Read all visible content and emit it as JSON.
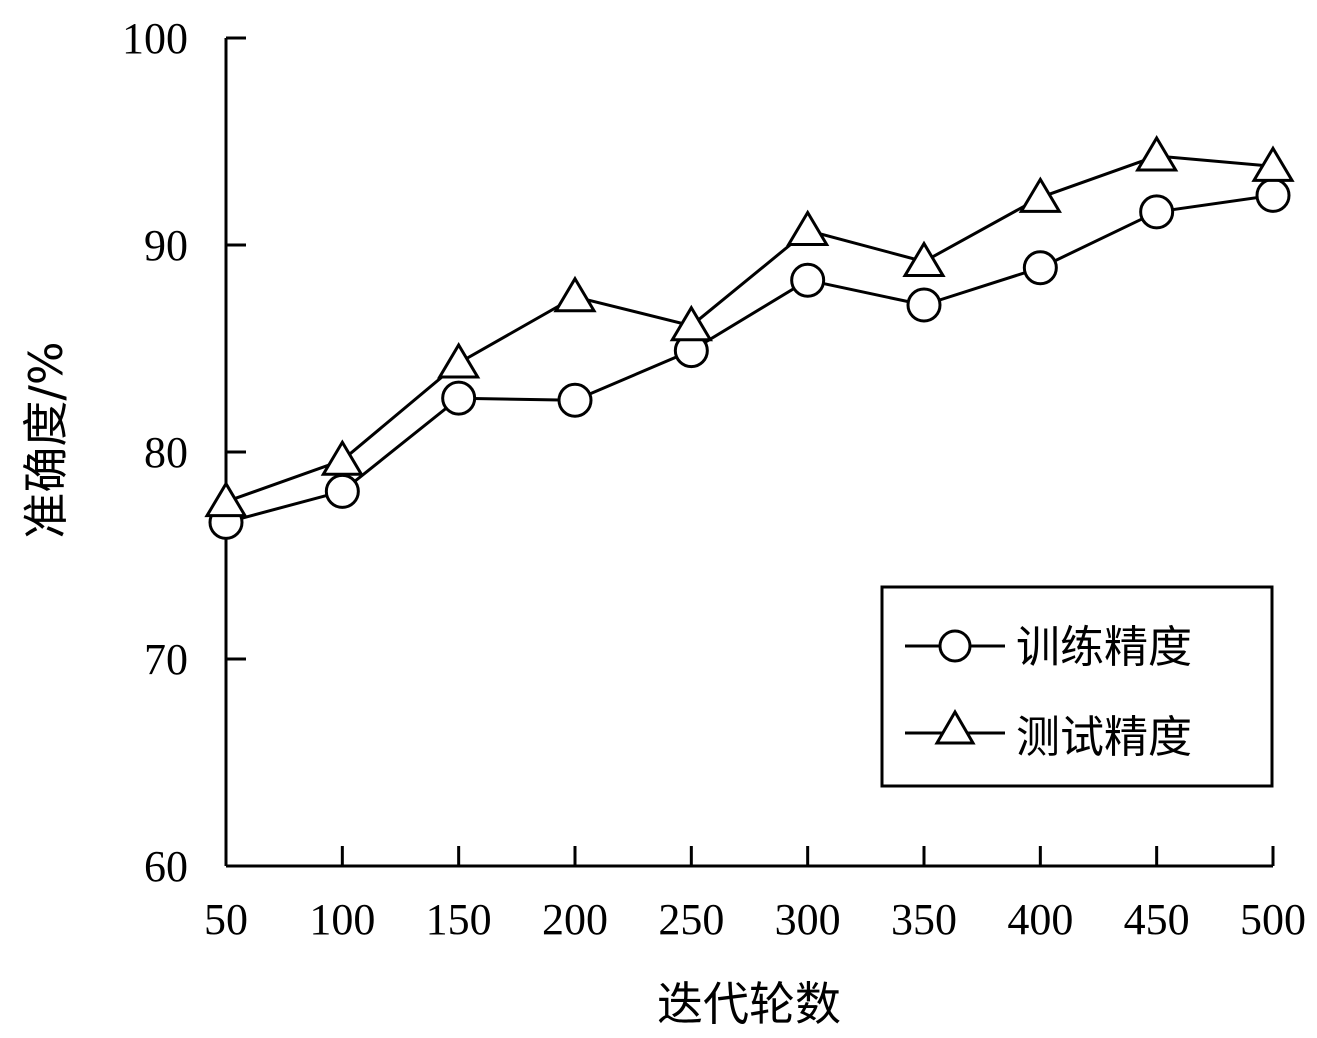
{
  "chart_data": {
    "type": "line",
    "title": "",
    "xlabel": "迭代轮数",
    "ylabel": "准确度/%",
    "x": [
      50,
      100,
      150,
      200,
      250,
      300,
      350,
      400,
      450,
      500
    ],
    "x_tick_labels": [
      "50",
      "100",
      "150",
      "200",
      "250",
      "300",
      "350",
      "400",
      "450",
      "500"
    ],
    "y_tick_labels": [
      "60",
      "70",
      "80",
      "90",
      "100"
    ],
    "y_ticks": [
      60,
      70,
      80,
      90,
      100
    ],
    "ylim": [
      60,
      100
    ],
    "grid": false,
    "legend_position": "bottom-right",
    "series": [
      {
        "name": "训练精度",
        "marker": "circle",
        "color": "#000000",
        "values": [
          76.6,
          78.1,
          82.6,
          82.5,
          84.9,
          88.3,
          87.1,
          88.9,
          91.6,
          92.4
        ]
      },
      {
        "name": "测试精度",
        "marker": "triangle",
        "color": "#000000",
        "values": [
          77.6,
          79.6,
          84.3,
          87.5,
          86.1,
          90.7,
          89.2,
          92.3,
          94.3,
          93.8
        ]
      }
    ]
  }
}
